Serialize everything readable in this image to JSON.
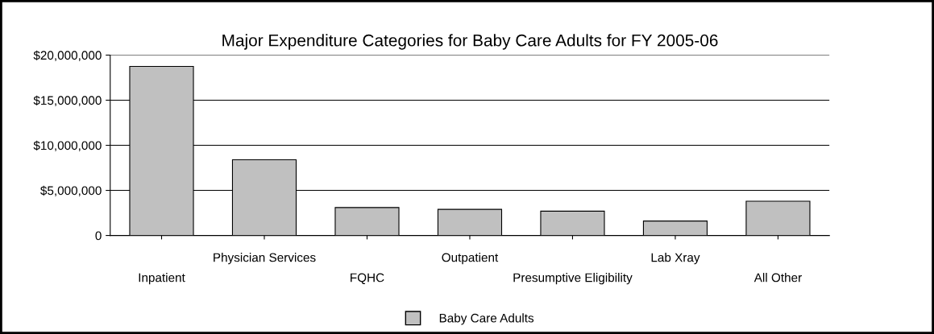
{
  "chart_data": {
    "type": "bar",
    "title": "Major Expenditure Categories for Baby Care Adults for FY 2005-06",
    "categories": [
      "Inpatient",
      "Physician Services",
      "FQHC",
      "Outpatient",
      "Presumptive Eligibility",
      "Lab Xray",
      "All Other"
    ],
    "series": [
      {
        "name": "Baby Care Adults",
        "color": "#c0c0c0",
        "values": [
          18750000,
          8400000,
          3100000,
          2900000,
          2700000,
          1600000,
          3800000
        ]
      }
    ],
    "ylim": [
      0,
      20000000
    ],
    "yticks": [
      {
        "value": 0,
        "label": "0"
      },
      {
        "value": 5000000,
        "label": "$5,000,000"
      },
      {
        "value": 10000000,
        "label": "$10,000,000"
      },
      {
        "value": 15000000,
        "label": "$15,000,000"
      },
      {
        "value": 20000000,
        "label": "$20,000,000"
      }
    ],
    "grid": "y",
    "legend": "bottom"
  }
}
